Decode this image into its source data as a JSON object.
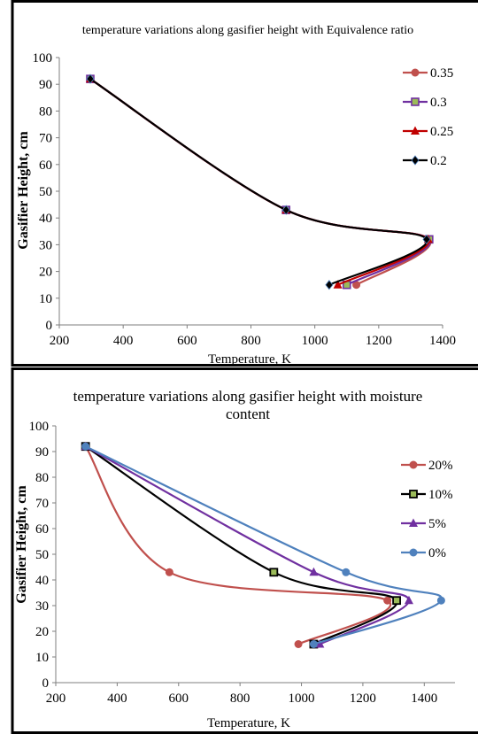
{
  "chart_data": [
    {
      "type": "line",
      "title": "temperature variations along gasifier height with Equivalence ratio",
      "title_lines": [
        "temperature variations along gasifier height with Equivalence ratio"
      ],
      "xlabel": "Temperature, K",
      "ylabel": "Gasifier Height, cm",
      "xlim": [
        200,
        1400
      ],
      "ylim": [
        0,
        100
      ],
      "xticks": [
        "200",
        "400",
        "600",
        "800",
        "1000",
        "1200",
        "1400"
      ],
      "yticks": [
        "0",
        "10",
        "20",
        "30",
        "40",
        "50",
        "60",
        "70",
        "80",
        "90",
        "100"
      ],
      "grid": false,
      "legend": "right",
      "series": [
        {
          "name": "0.35",
          "color": "#C0504D",
          "marker": "circle",
          "x": [
            297,
            910,
            1358,
            1130
          ],
          "y": [
            92,
            43,
            32,
            15
          ]
        },
        {
          "name": "0.3",
          "color": "#7030A0",
          "marker": "square",
          "x": [
            297,
            910,
            1358,
            1100
          ],
          "y": [
            92,
            43,
            32,
            15
          ]
        },
        {
          "name": "0.25",
          "color": "#C00000",
          "marker": "triangle",
          "x": [
            297,
            910,
            1355,
            1072
          ],
          "y": [
            92,
            43,
            32,
            15
          ]
        },
        {
          "name": "0.2",
          "color": "#000000",
          "marker": "diamond",
          "x": [
            297,
            910,
            1350,
            1045
          ],
          "y": [
            92,
            43,
            32,
            15
          ]
        }
      ]
    },
    {
      "type": "line",
      "title": "temperature variations along gasifier height with moisture content",
      "title_lines": [
        "temperature variations along gasifier height with moisture",
        "content"
      ],
      "xlabel": "Temperature, K",
      "ylabel": "Gasifier Height, cm",
      "xlim": [
        200,
        1500
      ],
      "ylim": [
        0,
        100
      ],
      "xticks": [
        "200",
        "400",
        "600",
        "800",
        "1000",
        "1200",
        "1400"
      ],
      "yticks": [
        "0",
        "10",
        "20",
        "30",
        "40",
        "50",
        "60",
        "70",
        "80",
        "90",
        "100"
      ],
      "grid": false,
      "legend": "right",
      "series": [
        {
          "name": "20%",
          "color": "#C0504D",
          "marker": "circle",
          "x": [
            297,
            570,
            1280,
            990
          ],
          "y": [
            92,
            43,
            32,
            15
          ]
        },
        {
          "name": "10%",
          "color": "#000000",
          "marker": "square-yellow",
          "x": [
            297,
            910,
            1310,
            1040
          ],
          "y": [
            92,
            43,
            32,
            15
          ]
        },
        {
          "name": "5%",
          "color": "#7030A0",
          "marker": "triangle",
          "x": [
            297,
            1040,
            1350,
            1060
          ],
          "y": [
            92,
            43,
            32,
            15
          ]
        },
        {
          "name": "0%",
          "color": "#4F81BD",
          "marker": "circle",
          "x": [
            297,
            1145,
            1455,
            1040
          ],
          "y": [
            92,
            43,
            32,
            15
          ]
        }
      ]
    }
  ]
}
